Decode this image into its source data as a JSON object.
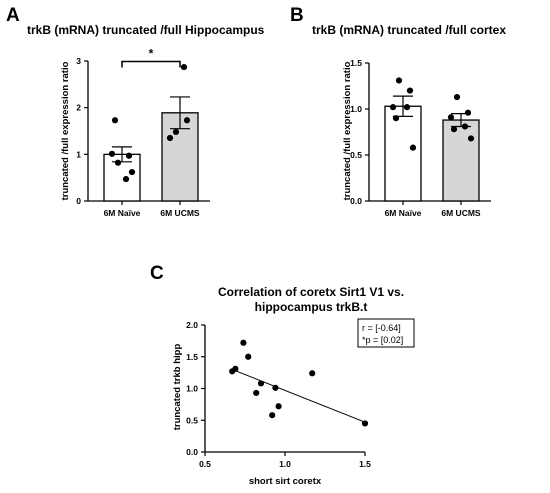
{
  "chart_data": [
    {
      "panel": "A",
      "type": "bar",
      "title": "trkB (mRNA) truncated /full Hippocampus",
      "ylabel": "truncated /full expression ratio",
      "categories": [
        "6M Naïve",
        "6M UCMS"
      ],
      "values": [
        1.0,
        1.89
      ],
      "errors": [
        0.16,
        0.34
      ],
      "colors": [
        "#ffffff",
        "#d6d6d6"
      ],
      "points": [
        [
          0.82,
          0.97,
          1.01,
          0.47,
          1.73,
          0.62
        ],
        [
          1.48,
          1.73,
          1.35,
          2.87
        ]
      ],
      "ylim": [
        0,
        3
      ],
      "yticks": [
        "0",
        "1",
        "2",
        "3"
      ],
      "significance": "*"
    },
    {
      "panel": "B",
      "type": "bar",
      "title": "trkB (mRNA) truncated /full cortex",
      "ylabel": "truncated /full expression ratio",
      "categories": [
        "6M Naïve",
        "6M UCMS"
      ],
      "values": [
        1.03,
        0.88
      ],
      "errors": [
        0.11,
        0.07
      ],
      "colors": [
        "#ffffff",
        "#d6d6d6"
      ],
      "points": [
        [
          1.31,
          1.2,
          1.02,
          1.02,
          0.9,
          0.58
        ],
        [
          1.13,
          0.96,
          0.91,
          0.81,
          0.78,
          0.68
        ]
      ],
      "ylim": [
        0,
        1.5
      ],
      "yticks": [
        "0.0",
        "0.5",
        "1.0",
        "1.5"
      ]
    },
    {
      "panel": "C",
      "type": "scatter",
      "title": "Correlation of coretx Sirt1 V1 vs.",
      "subtitle": "hippocampus trkB.t",
      "xlabel": "short sirt coretx",
      "ylabel": "truncated  trkb hipp",
      "x": [
        0.67,
        0.69,
        0.74,
        0.77,
        0.82,
        0.85,
        0.92,
        0.94,
        0.96,
        1.17,
        1.5
      ],
      "y": [
        1.27,
        1.31,
        1.72,
        1.5,
        0.93,
        1.08,
        0.58,
        1.01,
        0.72,
        1.24,
        0.45
      ],
      "fit": {
        "x": [
          0.67,
          1.5
        ],
        "y": [
          1.3,
          0.47
        ]
      },
      "xlim": [
        0.5,
        1.5
      ],
      "ylim": [
        0,
        2
      ],
      "xticks": [
        "0.5",
        "1.0",
        "1.5"
      ],
      "yticks": [
        "0.0",
        "0.5",
        "1.0",
        "1.5",
        "2.0"
      ],
      "stats": [
        "r = [-0.64]",
        "*p = [0.02]"
      ]
    }
  ]
}
